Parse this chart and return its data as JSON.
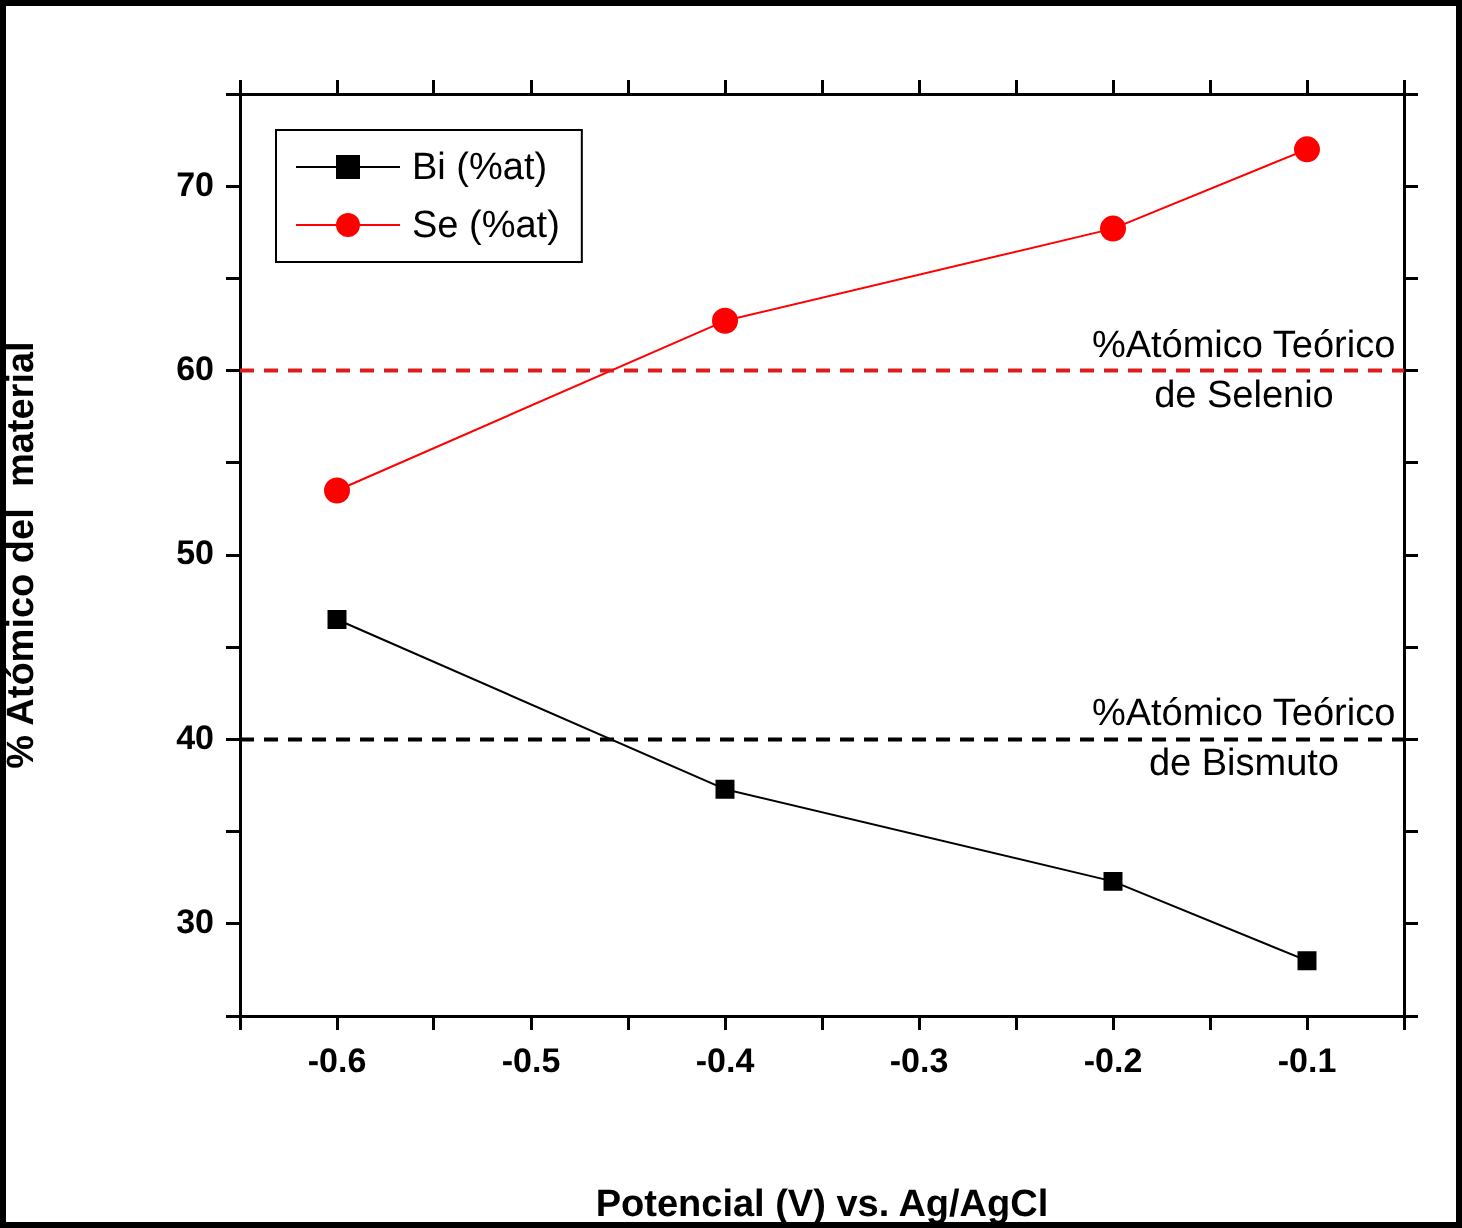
{
  "chart_data": {
    "type": "line",
    "xlabel": "Potencial (V) vs. Ag/AgCl",
    "ylabel": "% Atómico del  material",
    "x": [
      -0.6,
      -0.4,
      -0.2,
      -0.1
    ],
    "series": [
      {
        "name": "Bi (%at)",
        "color": "#000000",
        "marker": "square",
        "values": [
          46.5,
          37.3,
          32.3,
          28.0
        ]
      },
      {
        "name": "Se (%at)",
        "color": "#ff0000",
        "marker": "circle",
        "values": [
          53.5,
          62.7,
          67.7,
          72.0
        ]
      }
    ],
    "xlim": [
      -0.65,
      -0.05
    ],
    "xticks": [
      {
        "value": -0.65,
        "label": null
      },
      -0.6,
      {
        "value": -0.55,
        "label": null
      },
      -0.5,
      {
        "value": -0.45,
        "label": null
      },
      -0.4,
      {
        "value": -0.35,
        "label": null
      },
      -0.3,
      {
        "value": -0.25,
        "label": null
      },
      -0.2,
      {
        "value": -0.15,
        "label": null
      },
      -0.1,
      {
        "value": -0.05,
        "label": null
      }
    ],
    "ylim": [
      25,
      75
    ],
    "yticks": [
      {
        "value": 25,
        "label": null
      },
      30,
      {
        "value": 35,
        "label": null
      },
      40,
      {
        "value": 45,
        "label": null
      },
      50,
      {
        "value": 55,
        "label": null
      },
      60,
      {
        "value": 65,
        "label": null
      },
      70,
      {
        "value": 75,
        "label": null
      }
    ],
    "ref_lines": [
      {
        "axis": "y",
        "value": 60,
        "label": "%Atómico Teórico\nde Selenio",
        "color": "#dd1c1c",
        "line_style": "dashed"
      },
      {
        "axis": "y",
        "value": 40,
        "label": "%Atómico Teórico\nde Bismuto",
        "color": "#000000",
        "line_style": "dashed"
      }
    ],
    "grid": false,
    "legend": "top left",
    "line_style": "solid"
  }
}
